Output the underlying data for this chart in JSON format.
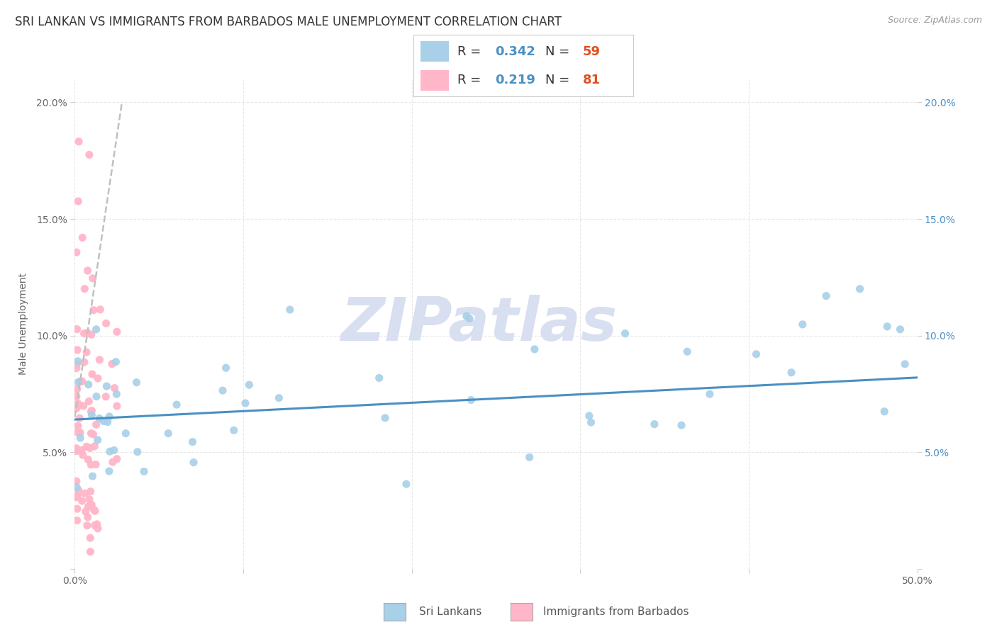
{
  "title": "SRI LANKAN VS IMMIGRANTS FROM BARBADOS MALE UNEMPLOYMENT CORRELATION CHART",
  "source_text": "Source: ZipAtlas.com",
  "ylabel": "Male Unemployment",
  "xlim": [
    0.0,
    0.5
  ],
  "ylim": [
    0.0,
    0.21
  ],
  "xticks": [
    0.0,
    0.1,
    0.2,
    0.3,
    0.4,
    0.5
  ],
  "yticks": [
    0.0,
    0.05,
    0.1,
    0.15,
    0.2
  ],
  "xticklabels_show": [
    "0.0%",
    "",
    "",
    "",
    "",
    "50.0%"
  ],
  "yticklabels_left": [
    "",
    "5.0%",
    "10.0%",
    "15.0%",
    "20.0%"
  ],
  "yticklabels_right": [
    "",
    "5.0%",
    "10.0%",
    "15.0%",
    "20.0%"
  ],
  "color_sri": "#A8D0E8",
  "color_bar": "#FFB6C8",
  "color_sri_line": "#4A90C4",
  "color_bar_line": "#C0C0C0",
  "watermark": "ZIPatlas",
  "watermark_color": "#D8DFF0",
  "sri_R": 0.342,
  "sri_N": 59,
  "bar_R": 0.219,
  "bar_N": 81,
  "background_color": "#FFFFFF",
  "grid_color": "#E8E8E8",
  "legend_text_color": "#4A90C4",
  "legend_n_color": "#E05020",
  "title_fontsize": 12,
  "axis_label_fontsize": 10,
  "tick_fontsize": 10
}
